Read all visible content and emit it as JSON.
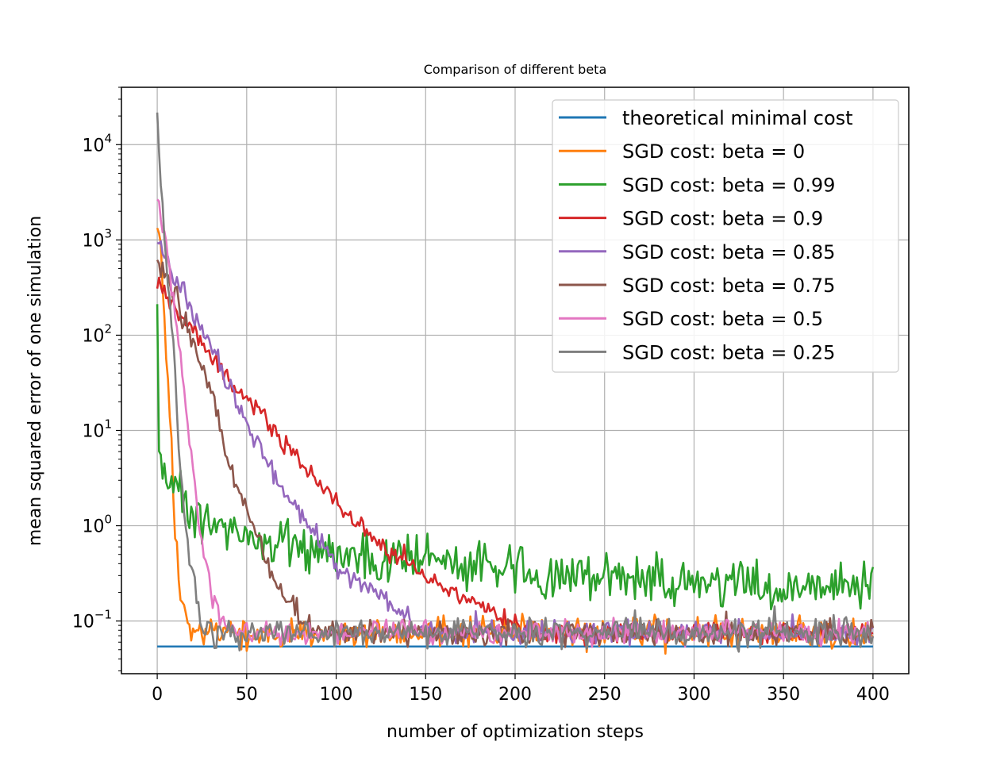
{
  "chart_data": {
    "type": "line",
    "title": "Comparison of different beta",
    "xlabel": "number of optimization steps",
    "ylabel": "mean squared error of one simulation",
    "xlim": [
      -20,
      420
    ],
    "ylim": [
      0.028,
      40000
    ],
    "yscale": "log",
    "grid": true,
    "legend_position": "top-right",
    "xticks": [
      0,
      50,
      100,
      150,
      200,
      250,
      300,
      350,
      400
    ],
    "yticks": [
      {
        "value": 0.1,
        "base": "10",
        "exp": "−1"
      },
      {
        "value": 1,
        "base": "10",
        "exp": "0"
      },
      {
        "value": 10,
        "base": "10",
        "exp": "1"
      },
      {
        "value": 100,
        "base": "10",
        "exp": "2"
      },
      {
        "value": 1000,
        "base": "10",
        "exp": "3"
      },
      {
        "value": 10000,
        "base": "10",
        "exp": "4"
      }
    ],
    "series": [
      {
        "name": "theoretical minimal cost",
        "color": "#1f77b4",
        "noise": 0,
        "seed": 0,
        "points": [
          [
            0,
            0.054
          ],
          [
            400,
            0.054
          ]
        ]
      },
      {
        "name": "SGD cost: beta = 0",
        "color": "#ff7f0e",
        "noise": 0.08,
        "seed": 11,
        "points": [
          [
            0,
            1500
          ],
          [
            2,
            600
          ],
          [
            4,
            150
          ],
          [
            6,
            30
          ],
          [
            8,
            5
          ],
          [
            10,
            1.0
          ],
          [
            12,
            0.3
          ],
          [
            14,
            0.13
          ],
          [
            16,
            0.09
          ],
          [
            20,
            0.075
          ],
          [
            30,
            0.075
          ],
          [
            400,
            0.075
          ]
        ]
      },
      {
        "name": "SGD cost: beta = 0.99",
        "color": "#2ca02c",
        "noise": 0.12,
        "seed": 23,
        "points": [
          [
            0,
            300
          ],
          [
            1,
            6
          ],
          [
            5,
            3
          ],
          [
            10,
            2.3
          ],
          [
            20,
            1.4
          ],
          [
            30,
            1.0
          ],
          [
            50,
            0.75
          ],
          [
            75,
            0.6
          ],
          [
            100,
            0.52
          ],
          [
            150,
            0.42
          ],
          [
            200,
            0.33
          ],
          [
            250,
            0.27
          ],
          [
            300,
            0.25
          ],
          [
            350,
            0.24
          ],
          [
            400,
            0.24
          ]
        ]
      },
      {
        "name": "SGD cost: beta = 0.9",
        "color": "#d62728",
        "noise": 0.05,
        "seed": 37,
        "points": [
          [
            0,
            320
          ],
          [
            10,
            200
          ],
          [
            20,
            110
          ],
          [
            30,
            60
          ],
          [
            40,
            35
          ],
          [
            50,
            20
          ],
          [
            60,
            13
          ],
          [
            75,
            6
          ],
          [
            90,
            2.8
          ],
          [
            100,
            1.8
          ],
          [
            125,
            0.6
          ],
          [
            150,
            0.3
          ],
          [
            175,
            0.16
          ],
          [
            200,
            0.1
          ],
          [
            212,
            0.08
          ],
          [
            225,
            0.075
          ],
          [
            400,
            0.075
          ]
        ]
      },
      {
        "name": "SGD cost: beta = 0.85",
        "color": "#9467bd",
        "noise": 0.06,
        "seed": 41,
        "points": [
          [
            0,
            1100
          ],
          [
            5,
            700
          ],
          [
            10,
            400
          ],
          [
            20,
            170
          ],
          [
            30,
            70
          ],
          [
            40,
            30
          ],
          [
            50,
            12
          ],
          [
            60,
            5
          ],
          [
            75,
            1.8
          ],
          [
            90,
            0.7
          ],
          [
            100,
            0.38
          ],
          [
            125,
            0.18
          ],
          [
            140,
            0.11
          ],
          [
            150,
            0.08
          ],
          [
            160,
            0.075
          ],
          [
            400,
            0.075
          ]
        ]
      },
      {
        "name": "SGD cost: beta = 0.75",
        "color": "#8c564b",
        "noise": 0.06,
        "seed": 53,
        "points": [
          [
            0,
            600
          ],
          [
            5,
            400
          ],
          [
            10,
            250
          ],
          [
            20,
            90
          ],
          [
            30,
            25
          ],
          [
            40,
            5
          ],
          [
            50,
            1.3
          ],
          [
            60,
            0.5
          ],
          [
            70,
            0.18
          ],
          [
            80,
            0.1
          ],
          [
            90,
            0.08
          ],
          [
            100,
            0.075
          ],
          [
            400,
            0.075
          ]
        ]
      },
      {
        "name": "SGD cost: beta = 0.5",
        "color": "#e377c2",
        "noise": 0.06,
        "seed": 67,
        "points": [
          [
            0,
            3000
          ],
          [
            5,
            900
          ],
          [
            10,
            150
          ],
          [
            15,
            25
          ],
          [
            20,
            4
          ],
          [
            25,
            0.6
          ],
          [
            30,
            0.2
          ],
          [
            35,
            0.1
          ],
          [
            40,
            0.08
          ],
          [
            45,
            0.075
          ],
          [
            400,
            0.075
          ]
        ]
      },
      {
        "name": "SGD cost: beta = 0.25",
        "color": "#7f7f7f",
        "noise": 0.07,
        "seed": 79,
        "points": [
          [
            0,
            20000
          ],
          [
            3,
            2000
          ],
          [
            6,
            400
          ],
          [
            10,
            50
          ],
          [
            12,
            7
          ],
          [
            15,
            1.5
          ],
          [
            18,
            0.5
          ],
          [
            22,
            0.15
          ],
          [
            25,
            0.09
          ],
          [
            30,
            0.075
          ],
          [
            400,
            0.075
          ]
        ]
      }
    ]
  }
}
